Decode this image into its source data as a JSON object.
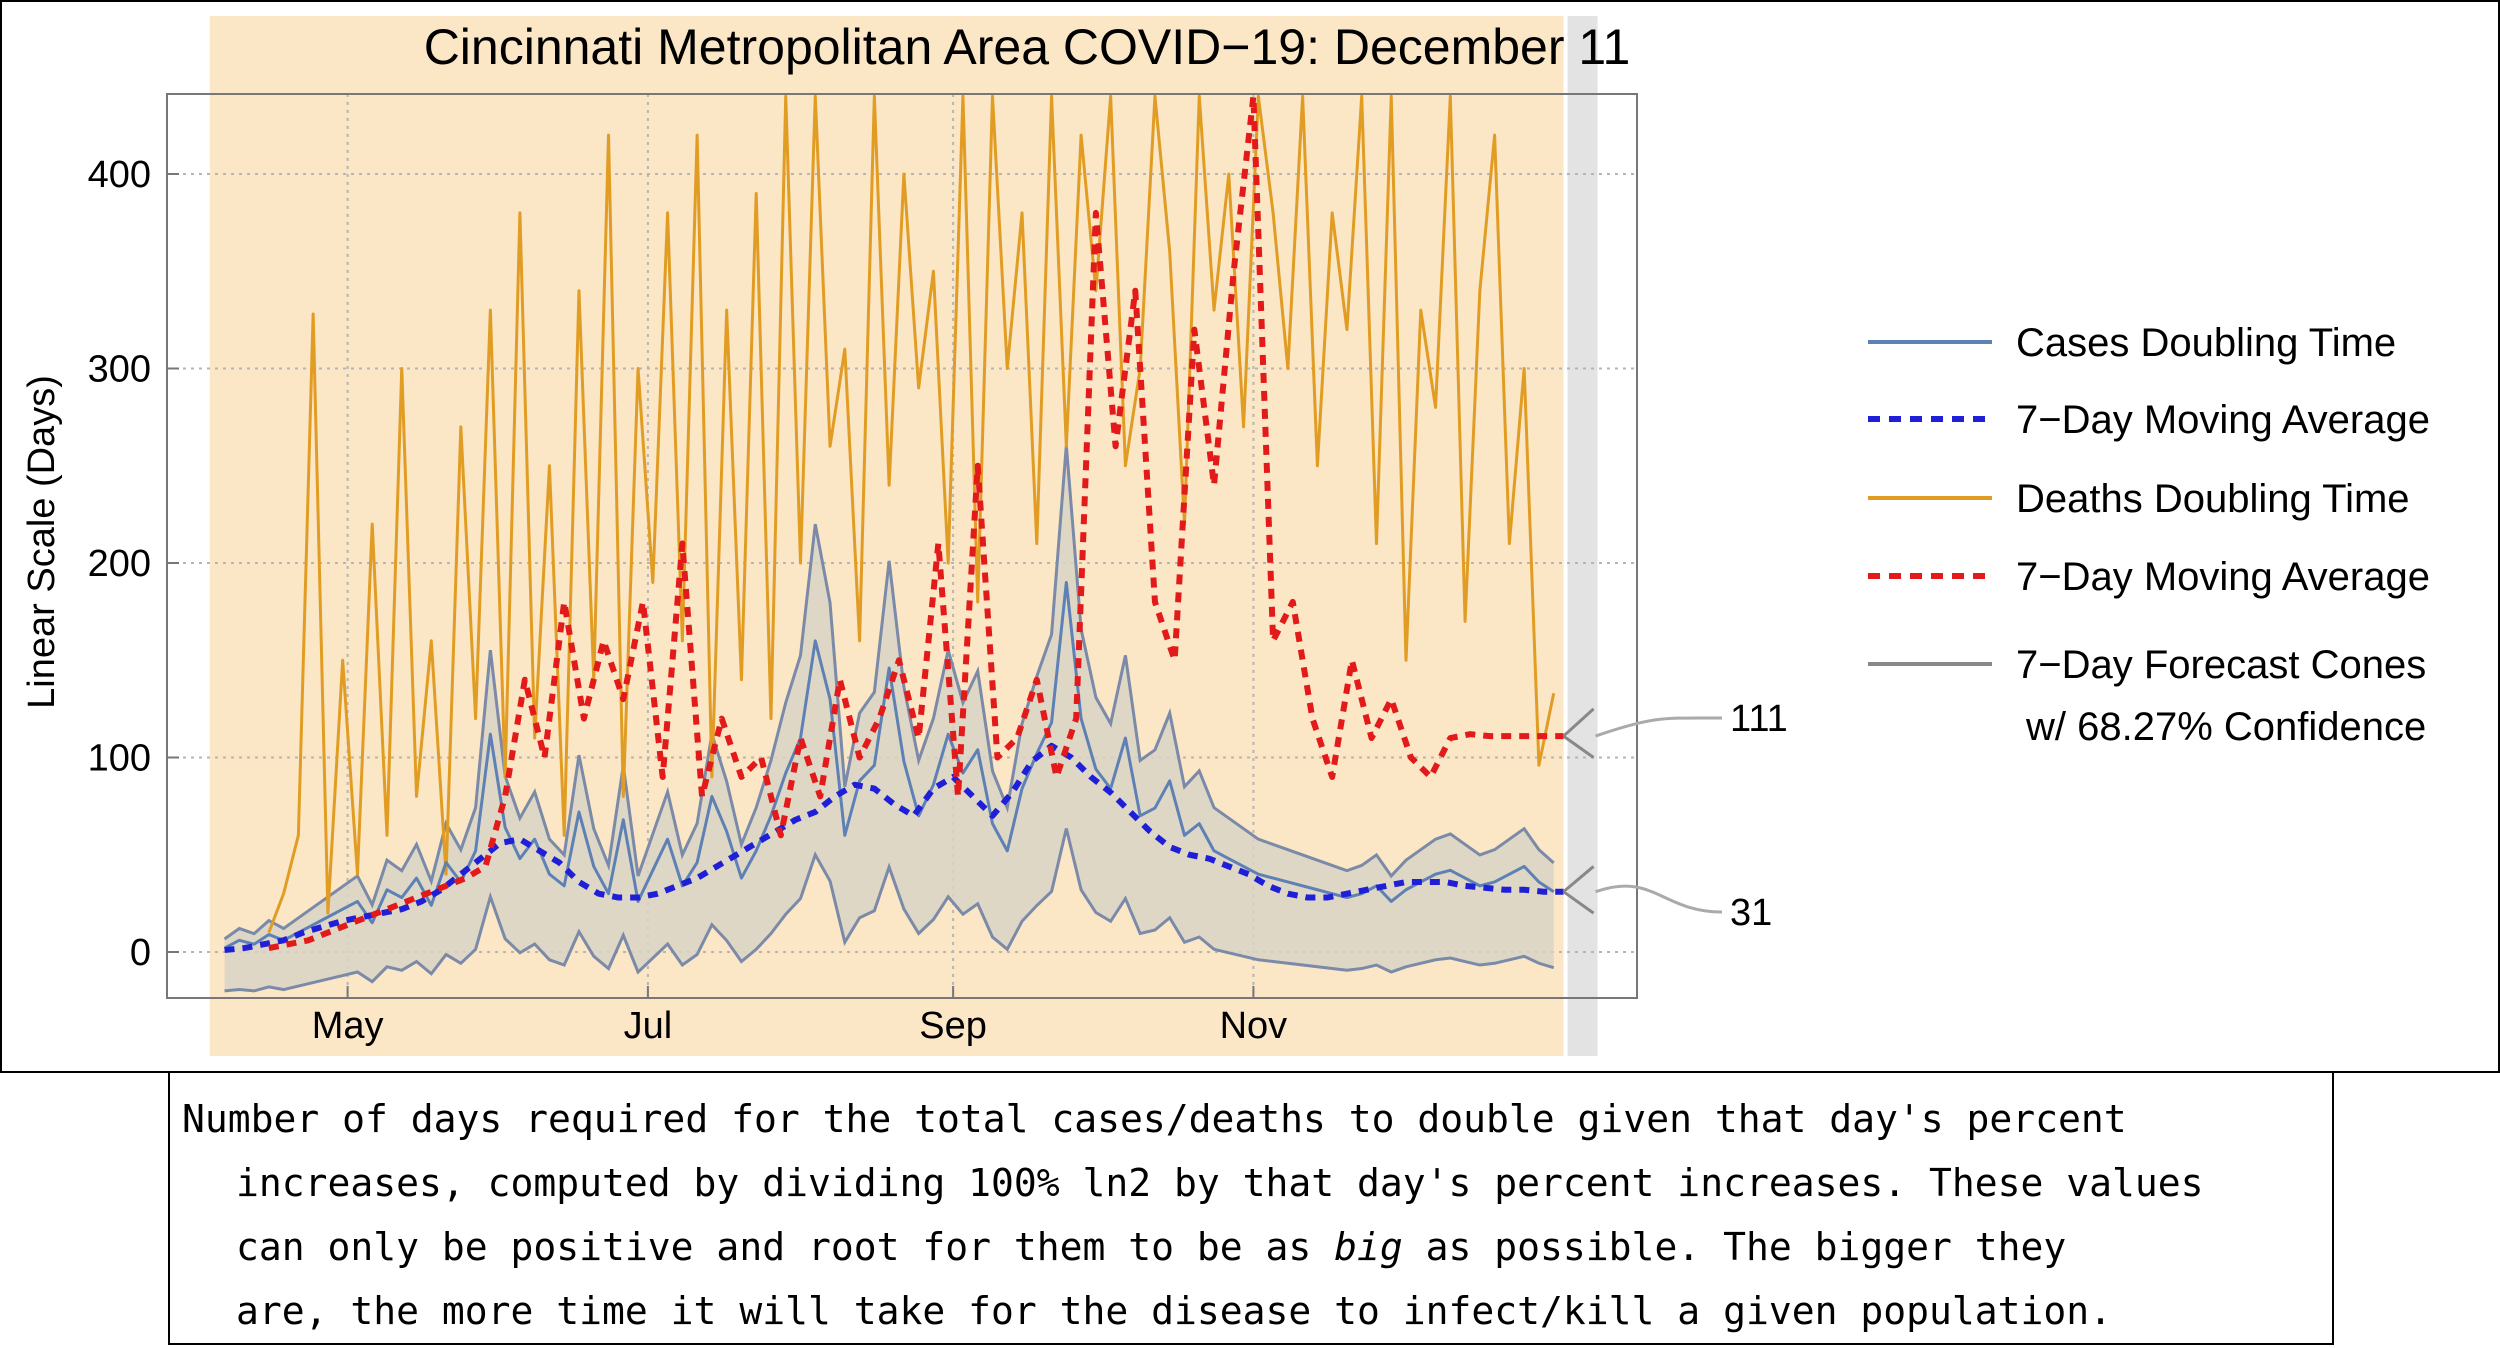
{
  "chart_data": {
    "type": "line",
    "title": "Cincinnati Metropolitan Area COVID−19: December 11",
    "xlabel": "",
    "ylabel": "Linear Scale (Days)",
    "ylim": [
      -22,
      445
    ],
    "y_ticks": [
      0,
      100,
      200,
      300,
      400
    ],
    "x_ticks": [
      "May",
      "Jul",
      "Sep",
      "Nov"
    ],
    "x_tick_days": [
      31,
      92,
      154,
      215
    ],
    "x_axis_start": "2020-04-01",
    "xlim_days": [
      0,
      285
    ],
    "grid": true,
    "legend_position": "right",
    "forecast_shade_start_day": 278,
    "series": [
      {
        "name": "Cases Doubling Time",
        "style": "solid",
        "color": "#5e81b5",
        "x": [
          6,
          9,
          12,
          15,
          18,
          21,
          24,
          27,
          30,
          33,
          36,
          39,
          42,
          45,
          48,
          51,
          54,
          57,
          60,
          63,
          66,
          69,
          72,
          75,
          78,
          81,
          84,
          87,
          90,
          93,
          96,
          99,
          102,
          105,
          108,
          111,
          114,
          117,
          120,
          123,
          126,
          129,
          132,
          135,
          138,
          141,
          144,
          147,
          150,
          153,
          156,
          159,
          162,
          165,
          168,
          171,
          174,
          177,
          180,
          183,
          186,
          189,
          192,
          195,
          198,
          201,
          204,
          207,
          210,
          213,
          216,
          219,
          222,
          225,
          228,
          231,
          234,
          237,
          240,
          243,
          246,
          249,
          252,
          255,
          258,
          261,
          264,
          267,
          270,
          273,
          276
        ],
        "values": [
          2,
          6,
          4,
          9,
          6,
          10,
          14,
          18,
          22,
          26,
          15,
          32,
          28,
          38,
          24,
          46,
          36,
          52,
          112,
          64,
          48,
          58,
          40,
          34,
          72,
          44,
          30,
          68,
          26,
          42,
          58,
          34,
          46,
          80,
          62,
          38,
          52,
          70,
          92,
          110,
          160,
          130,
          60,
          88,
          96,
          146,
          98,
          70,
          86,
          112,
          92,
          104,
          66,
          52,
          84,
          102,
          118,
          190,
          120,
          94,
          84,
          110,
          70,
          74,
          88,
          60,
          66,
          52,
          48,
          44,
          40,
          38,
          36,
          34,
          32,
          30,
          28,
          30,
          34,
          26,
          32,
          36,
          40,
          42,
          38,
          34,
          36,
          40,
          44,
          36,
          31
        ]
      },
      {
        "name": "7−Day Moving Average",
        "style": "dashed",
        "color": "#1f1fd8",
        "x": [
          6,
          10,
          14,
          18,
          22,
          26,
          30,
          34,
          38,
          42,
          46,
          50,
          54,
          58,
          62,
          66,
          70,
          74,
          78,
          82,
          86,
          90,
          94,
          98,
          102,
          106,
          110,
          114,
          118,
          122,
          126,
          130,
          134,
          138,
          142,
          146,
          150,
          154,
          158,
          162,
          166,
          170,
          174,
          178,
          182,
          186,
          190,
          194,
          198,
          202,
          206,
          210,
          214,
          218,
          222,
          226,
          230,
          234,
          238,
          242,
          246,
          250,
          254,
          258,
          262,
          266,
          270,
          274,
          278
        ],
        "values": [
          1,
          2,
          4,
          6,
          10,
          13,
          16,
          18,
          20,
          22,
          26,
          32,
          40,
          48,
          56,
          58,
          52,
          46,
          36,
          30,
          28,
          28,
          30,
          34,
          38,
          44,
          50,
          56,
          62,
          68,
          72,
          80,
          86,
          84,
          76,
          70,
          84,
          90,
          80,
          70,
          82,
          98,
          106,
          100,
          90,
          82,
          72,
          62,
          54,
          50,
          48,
          44,
          40,
          34,
          30,
          28,
          28,
          30,
          32,
          34,
          36,
          36,
          36,
          34,
          33,
          32,
          32,
          31,
          31
        ]
      },
      {
        "name": "Deaths Doubling Time",
        "style": "solid",
        "color": "#e19c24",
        "x": [
          15,
          18,
          21,
          24,
          27,
          30,
          33,
          36,
          39,
          42,
          45,
          48,
          51,
          54,
          57,
          60,
          63,
          66,
          69,
          72,
          75,
          78,
          81,
          84,
          87,
          90,
          93,
          96,
          99,
          102,
          105,
          108,
          111,
          114,
          117,
          120,
          123,
          126,
          129,
          132,
          135,
          138,
          141,
          144,
          147,
          150,
          153,
          156,
          159,
          162,
          165,
          168,
          171,
          174,
          177,
          180,
          183,
          186,
          189,
          192,
          195,
          198,
          201,
          204,
          207,
          210,
          213,
          216,
          219,
          222,
          225,
          228,
          231,
          234,
          237,
          240,
          243,
          246,
          249,
          252,
          255,
          258,
          261,
          264,
          267,
          270,
          273,
          276
        ],
        "values": [
          10,
          30,
          60,
          328,
          20,
          150,
          40,
          220,
          60,
          300,
          80,
          160,
          40,
          270,
          120,
          330,
          90,
          380,
          110,
          250,
          60,
          340,
          140,
          420,
          80,
          300,
          190,
          380,
          160,
          420,
          90,
          330,
          140,
          390,
          120,
          440,
          200,
          440,
          260,
          310,
          160,
          440,
          240,
          400,
          290,
          350,
          200,
          440,
          180,
          440,
          300,
          380,
          210,
          440,
          260,
          420,
          340,
          440,
          250,
          300,
          440,
          360,
          220,
          440,
          330,
          400,
          270,
          440,
          380,
          300,
          440,
          250,
          380,
          320,
          440,
          210,
          440,
          150,
          330,
          280,
          440,
          170,
          340,
          420,
          210,
          300,
          96,
          133
        ]
      },
      {
        "name": "7−Day Moving Average",
        "style": "dashed",
        "color": "#e21a1a",
        "x": [
          15,
          19,
          23,
          27,
          31,
          35,
          39,
          43,
          47,
          51,
          55,
          59,
          63,
          67,
          71,
          75,
          79,
          83,
          87,
          91,
          95,
          99,
          103,
          107,
          111,
          115,
          119,
          123,
          127,
          131,
          135,
          139,
          143,
          147,
          151,
          155,
          159,
          163,
          167,
          171,
          175,
          179,
          183,
          187,
          191,
          195,
          199,
          203,
          207,
          211,
          215,
          219,
          223,
          227,
          231,
          235,
          239,
          243,
          247,
          251,
          255,
          259,
          263,
          267,
          271,
          275,
          278
        ],
        "values": [
          2,
          4,
          6,
          10,
          14,
          18,
          22,
          26,
          30,
          34,
          38,
          44,
          80,
          140,
          100,
          180,
          120,
          160,
          130,
          180,
          90,
          210,
          80,
          120,
          90,
          100,
          60,
          110,
          80,
          140,
          100,
          120,
          150,
          110,
          210,
          80,
          250,
          100,
          110,
          140,
          90,
          120,
          380,
          260,
          340,
          180,
          150,
          320,
          240,
          350,
          440,
          160,
          180,
          120,
          90,
          150,
          110,
          130,
          100,
          90,
          110,
          112,
          111,
          111,
          111,
          111,
          111
        ]
      },
      {
        "name": "7−Day Forecast Cones",
        "subtitle": "w/ 68.27% Confidence",
        "style": "solid",
        "color": "#888888",
        "forecast_end_labels": [
          "111",
          "31"
        ],
        "forecast_end_values": [
          111,
          31
        ]
      }
    ],
    "end_labels": [
      {
        "text": "111",
        "color": "#cc0000",
        "value": 111
      },
      {
        "text": "31",
        "color": "#1a1ab0",
        "value": 31
      }
    ]
  },
  "legend": {
    "items": [
      {
        "label": "Cases Doubling Time",
        "color": "#5e81b5",
        "dash": false
      },
      {
        "label": "7−Day Moving Average",
        "color": "#1f1fd8",
        "dash": true
      },
      {
        "label": "Deaths Doubling Time",
        "color": "#e19c24",
        "dash": false
      },
      {
        "label": "7−Day Moving Average",
        "color": "#e21a1a",
        "dash": true
      },
      {
        "label": "7−Day Forecast Cones",
        "label2": "w/ 68.27% Confidence",
        "color": "#888888",
        "dash": false
      }
    ]
  },
  "caption": {
    "lines": [
      "Number of days required for the total cases/deaths to double given that day's percent",
      "increases, computed by dividing 100% ln2 by that day's percent increases. These values",
      "can only be positive and root for them to be as big as possible. The bigger they",
      "are, the more time it will take for the disease to infect/kill a given population."
    ],
    "emphasis_word": "big"
  }
}
